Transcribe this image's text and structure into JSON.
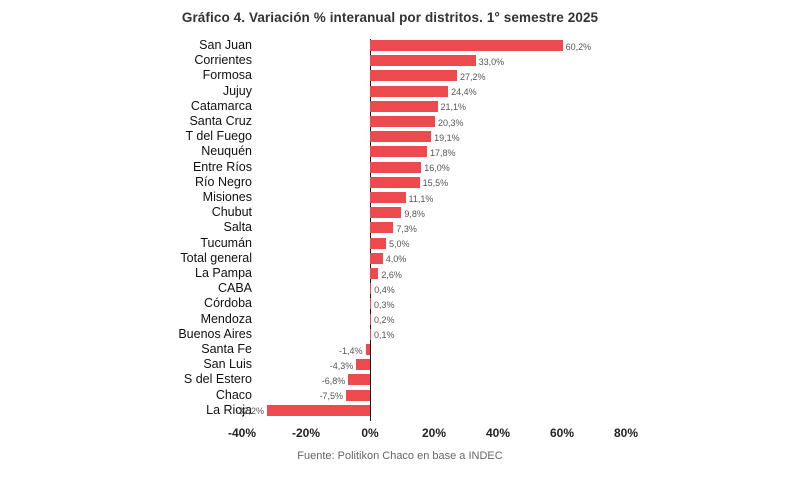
{
  "chart_data": {
    "type": "bar",
    "orientation": "horizontal",
    "title": "Gráfico 4. Variación % interanual por distritos. 1° semestre 2025",
    "source": "Fuente: Politikon Chaco en base a INDEC",
    "categories": [
      "San Juan",
      "Corrientes",
      "Formosa",
      "Jujuy",
      "Catamarca",
      "Santa Cruz",
      "T del Fuego",
      "Neuquén",
      "Entre Ríos",
      "Río Negro",
      "Misiones",
      "Chubut",
      "Salta",
      "Tucumán",
      "Total general",
      "La Pampa",
      "CABA",
      "Córdoba",
      "Mendoza",
      "Buenos Aires",
      "Santa Fe",
      "San Luis",
      "S del Estero",
      "Chaco",
      "La Rioja"
    ],
    "values": [
      60.2,
      33.0,
      27.2,
      24.4,
      21.1,
      20.3,
      19.1,
      17.8,
      16.0,
      15.5,
      11.1,
      9.8,
      7.3,
      5.0,
      4.0,
      2.6,
      0.4,
      0.3,
      0.2,
      0.1,
      -1.4,
      -4.3,
      -6.8,
      -7.5,
      -32.2
    ],
    "value_labels": [
      "60,2%",
      "33,0%",
      "27,2%",
      "24,4%",
      "21,1%",
      "20,3%",
      "19,1%",
      "17,8%",
      "16,0%",
      "15,5%",
      "11,1%",
      "9,8%",
      "7,3%",
      "5,0%",
      "4,0%",
      "2,6%",
      "0,4%",
      "0,3%",
      "0,2%",
      "0,1%",
      "-1,4%",
      "-4,3%",
      "-6,8%",
      "-7,5%",
      "-32,2%"
    ],
    "x_ticks": [
      -40,
      -20,
      0,
      20,
      40,
      60,
      80
    ],
    "x_tick_labels": [
      "-40%",
      "-20%",
      "0%",
      "20%",
      "40%",
      "60%",
      "80%"
    ],
    "xlim": [
      -40,
      80
    ],
    "bar_color": "#ed4a4f",
    "grid": false,
    "legend": "none"
  }
}
